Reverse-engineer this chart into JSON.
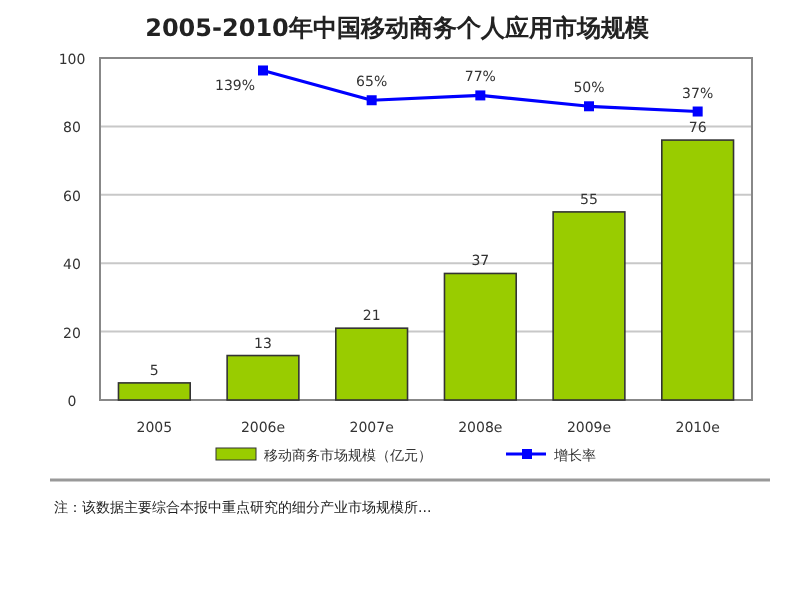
{
  "chart_data": {
    "type": "bar",
    "title": "2005-2010年中国移动商务个人应用市场规模",
    "categories": [
      "2005",
      "2006e",
      "2007e",
      "2008e",
      "2009e",
      "2010e"
    ],
    "series": [
      {
        "name": "移动商务市场规模（亿元）",
        "color": "#99cc00",
        "values": [
          5,
          13,
          21,
          37,
          55,
          76
        ]
      },
      {
        "name": "增长率",
        "type": "line",
        "axis": "y2",
        "color": "#0000ff",
        "marker": "square",
        "values": [
          null,
          139,
          65,
          77,
          50,
          37
        ],
        "value_labels": [
          null,
          "139%",
          "65%",
          "77%",
          "50%",
          "37%"
        ]
      }
    ],
    "data_labels": true,
    "ylim": [
      0,
      100
    ],
    "yticks": [
      0,
      20,
      40,
      60,
      80,
      100
    ],
    "y2lim": [
      -680,
      170
    ],
    "grid": "y",
    "legend": "bottom",
    "annotations": [
      "注：该数据主要综合本报中重点研究的细分产业市场规模所..."
    ]
  }
}
